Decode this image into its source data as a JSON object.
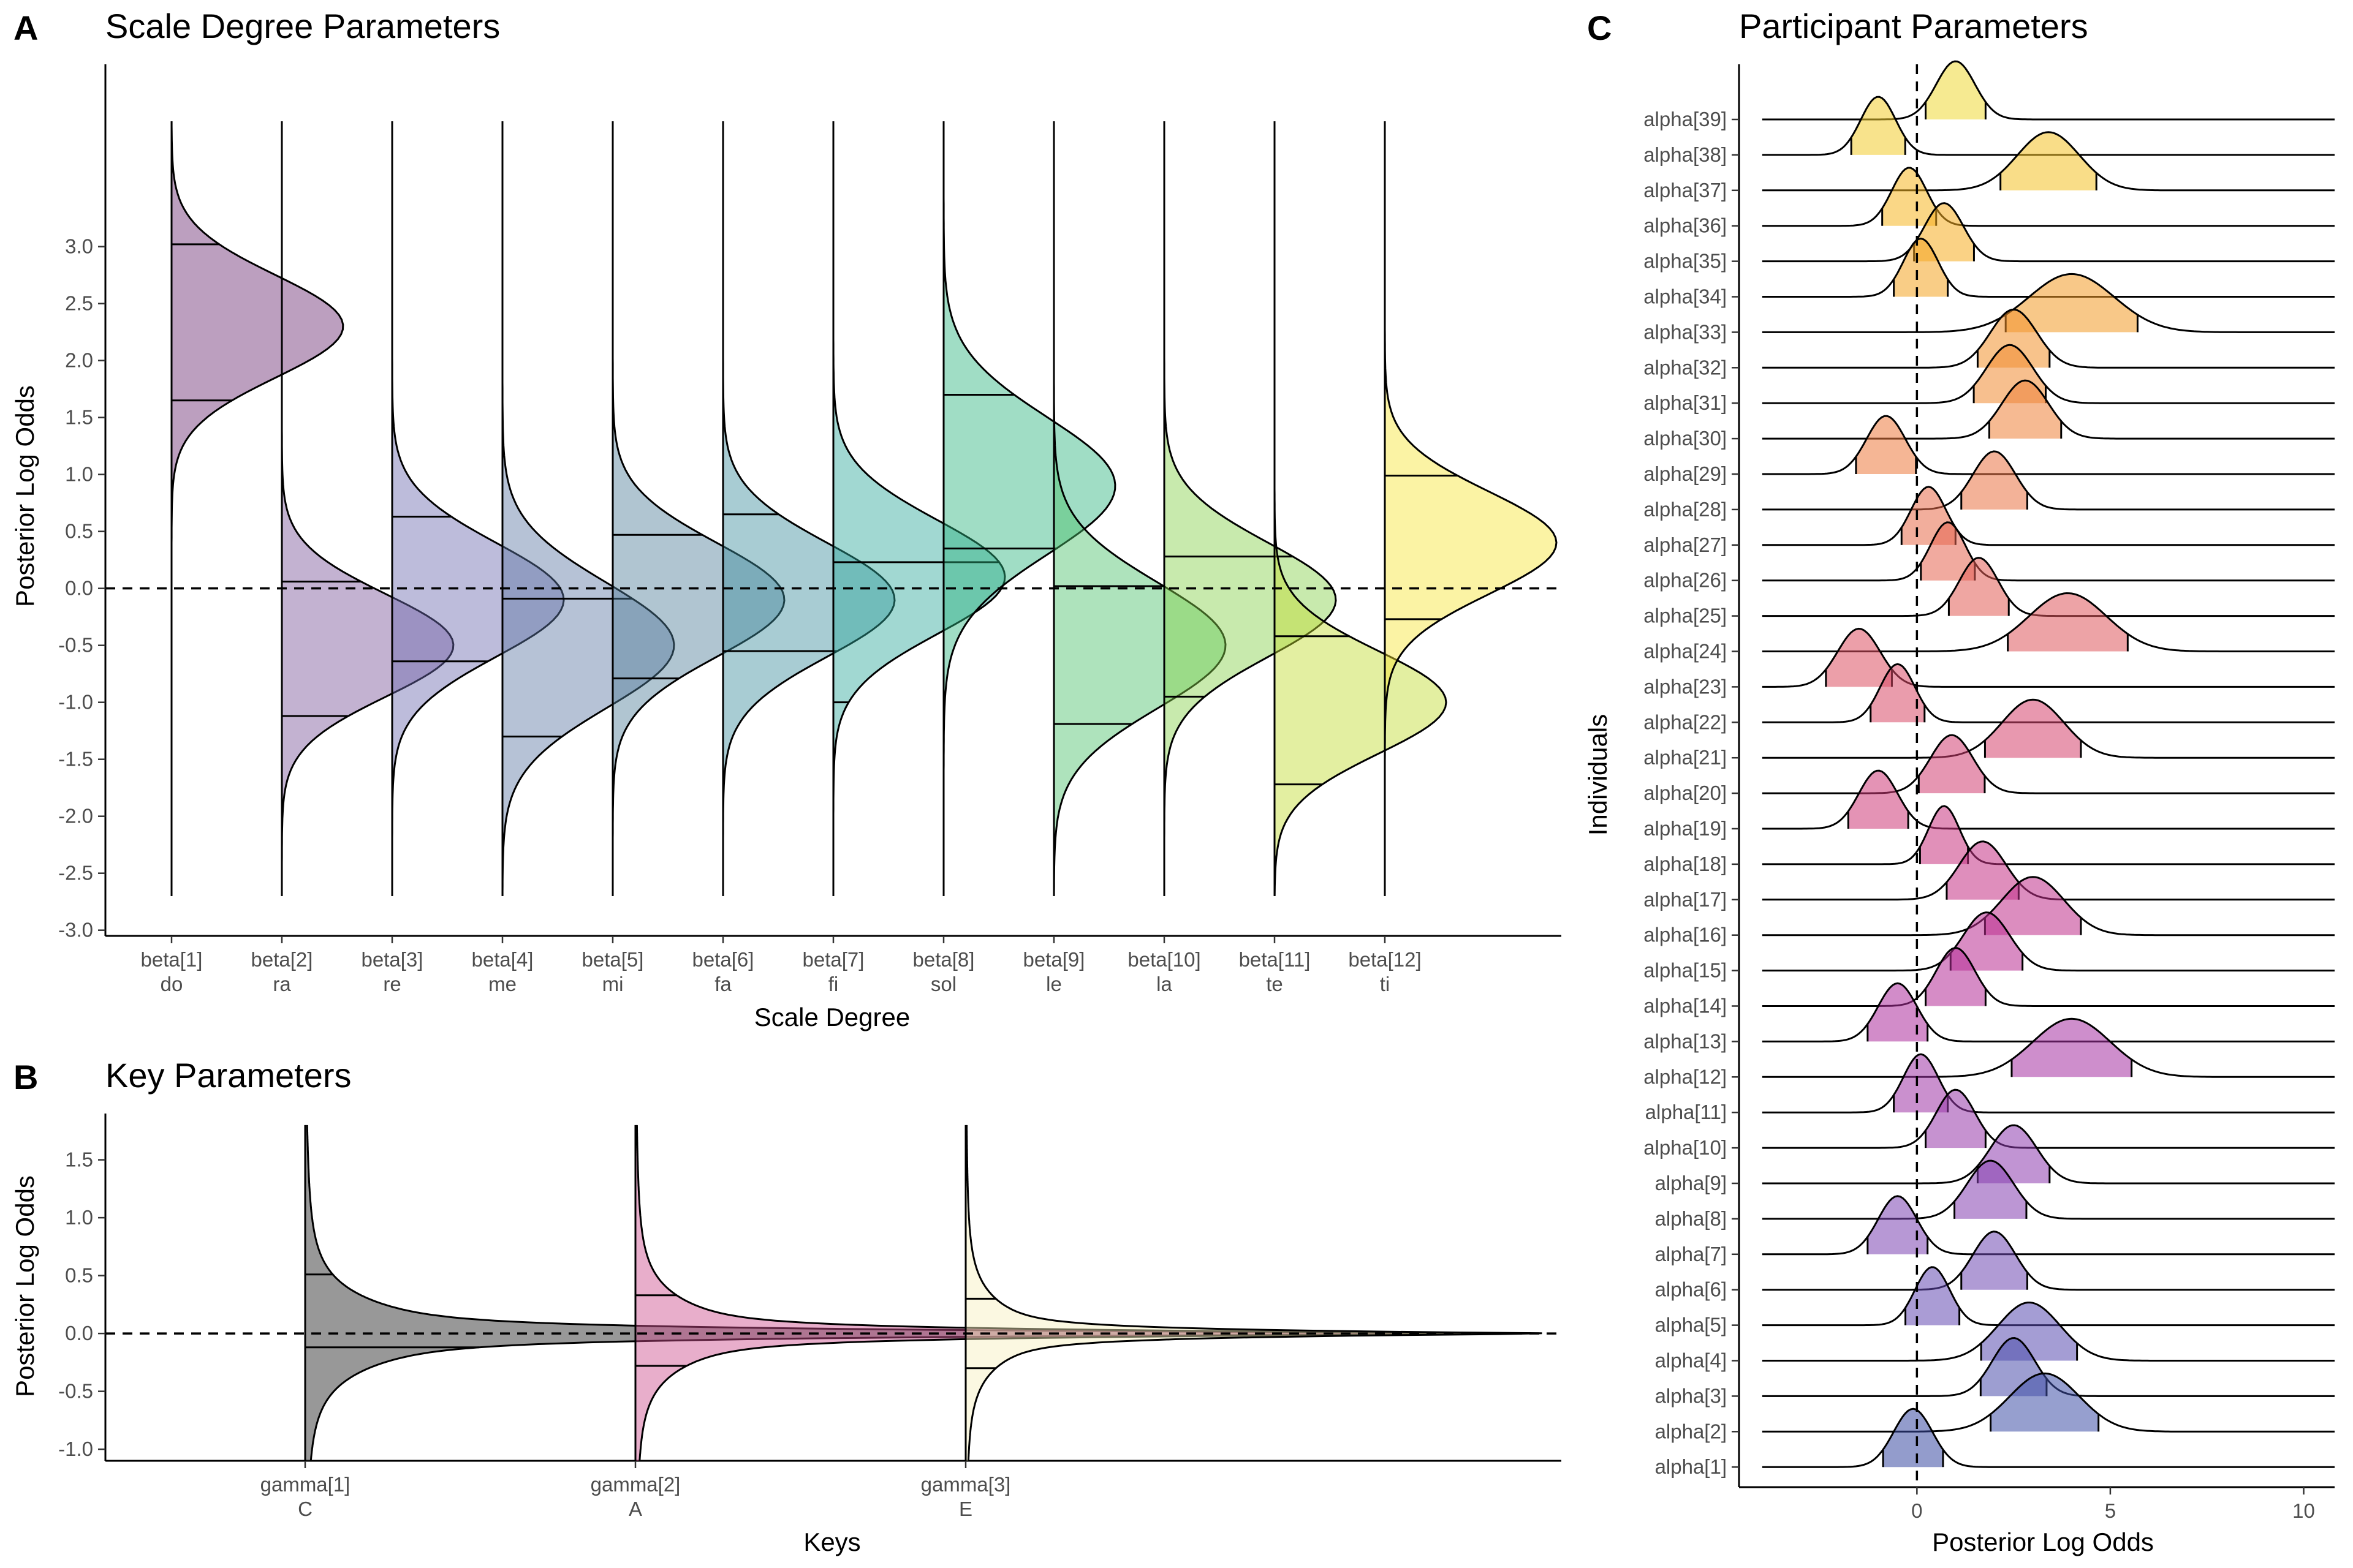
{
  "chart_data": [
    {
      "panel_letter": "A",
      "type": "violin",
      "title": "Scale Degree Parameters",
      "xlabel": "Scale Degree",
      "ylabel": "Posterior Log Odds",
      "ylim": [
        -3.05,
        4.6
      ],
      "yticks": [
        "3.0",
        "2.5",
        "2.0",
        "1.5",
        "1.0",
        "0.5",
        "0.0",
        "-0.5",
        "-1.0",
        "-1.5",
        "-2.0",
        "-2.5",
        "-3.0"
      ],
      "reference_line": 0,
      "categories": [
        {
          "param": "beta[1]",
          "label": "do",
          "mean": 2.3,
          "sd": 0.45,
          "q_low": 1.65,
          "q_high": 3.02,
          "color": "#6b2a72",
          "y_range": [
            -2.7,
            4.1
          ]
        },
        {
          "param": "beta[2]",
          "label": "ra",
          "mean": -0.5,
          "sd": 0.45,
          "q_low": -1.12,
          "q_high": 0.06,
          "color": "#7a5599",
          "y_range": [
            -2.7,
            4.1
          ]
        },
        {
          "param": "beta[3]",
          "label": "re",
          "mean": -0.1,
          "sd": 0.5,
          "q_low": -0.64,
          "q_high": 0.63,
          "color": "#6c6ab0",
          "y_range": [
            -2.7,
            4.1
          ]
        },
        {
          "param": "beta[4]",
          "label": "me",
          "mean": -0.5,
          "sd": 0.55,
          "q_low": -1.3,
          "q_high": -0.09,
          "color": "#5d77a3",
          "y_range": [
            -2.7,
            4.1
          ]
        },
        {
          "param": "beta[5]",
          "label": "mi",
          "mean": -0.1,
          "sd": 0.5,
          "q_low": -0.79,
          "q_high": 0.47,
          "color": "#4f7f9a",
          "y_range": [
            -2.7,
            4.1
          ]
        },
        {
          "param": "beta[6]",
          "label": "fa",
          "mean": -0.1,
          "sd": 0.5,
          "q_low": -0.55,
          "q_high": 0.65,
          "color": "#3e8e9e",
          "y_range": [
            -2.7,
            4.1
          ]
        },
        {
          "param": "beta[7]",
          "label": "fi",
          "mean": 0.1,
          "sd": 0.5,
          "q_low": -1.0,
          "q_high": 0.23,
          "color": "#2ea89c",
          "y_range": [
            -2.7,
            4.1
          ]
        },
        {
          "param": "beta[8]",
          "label": "sol",
          "mean": 0.9,
          "sd": 0.6,
          "q_low": 0.35,
          "q_high": 1.7,
          "color": "#2cb37f",
          "y_range": [
            -2.7,
            4.1
          ]
        },
        {
          "param": "beta[9]",
          "label": "le",
          "mean": -0.5,
          "sd": 0.55,
          "q_low": -1.19,
          "q_high": 0.02,
          "color": "#4cc26a",
          "y_range": [
            -2.7,
            4.1
          ]
        },
        {
          "param": "beta[10]",
          "label": "la",
          "mean": -0.1,
          "sd": 0.5,
          "q_low": -0.95,
          "q_high": 0.28,
          "color": "#84d149",
          "y_range": [
            -2.7,
            4.1
          ]
        },
        {
          "param": "beta[11]",
          "label": "te",
          "mean": -1.0,
          "sd": 0.45,
          "q_low": -1.72,
          "q_high": -0.42,
          "color": "#c1dc2e",
          "y_range": [
            -2.7,
            4.1
          ]
        },
        {
          "param": "beta[12]",
          "label": "ti",
          "mean": 0.4,
          "sd": 0.45,
          "q_low": -0.27,
          "q_high": 0.99,
          "color": "#f6e435",
          "y_range": [
            -2.7,
            4.1
          ]
        }
      ]
    },
    {
      "panel_letter": "B",
      "type": "violin",
      "title": "Key Parameters",
      "xlabel": "Keys",
      "ylabel": "Posterior Log Odds",
      "ylim": [
        -1.1,
        1.9
      ],
      "yticks": [
        "1.5",
        "1.0",
        "0.5",
        "0.0",
        "-0.5",
        "-1.0"
      ],
      "reference_line": 0,
      "categories": [
        {
          "param": "gamma[1]",
          "label": "C",
          "center": 0,
          "q_low": -0.12,
          "q_high": 0.51,
          "color": "#1a1a1a",
          "y_range": [
            -1.1,
            1.8
          ]
        },
        {
          "param": "gamma[2]",
          "label": "A",
          "center": 0,
          "q_low": -0.28,
          "q_high": 0.33,
          "color": "#cc4c8c",
          "y_range": [
            -1.1,
            1.8
          ]
        },
        {
          "param": "gamma[3]",
          "label": "E",
          "center": 0,
          "q_low": -0.3,
          "q_high": 0.3,
          "color": "#f7f0bc",
          "y_range": [
            -1.1,
            1.8
          ]
        }
      ]
    },
    {
      "panel_letter": "C",
      "type": "ridgeline",
      "title": "Participant Parameters",
      "xlabel": "Posterior Log Odds",
      "ylabel": "Individuals",
      "xlim": [
        -4.6,
        10.8
      ],
      "xticks": [
        "0",
        "5",
        "10"
      ],
      "reference_line": 0,
      "series": [
        {
          "name": "alpha[1]",
          "mean": -0.1,
          "sd": 0.5,
          "color": "#3b4aa2"
        },
        {
          "name": "alpha[2]",
          "mean": 3.3,
          "sd": 0.9,
          "color": "#4050a8"
        },
        {
          "name": "alpha[3]",
          "mean": 2.5,
          "sd": 0.55,
          "color": "#4d4fab"
        },
        {
          "name": "alpha[4]",
          "mean": 2.9,
          "sd": 0.8,
          "color": "#5a4db0"
        },
        {
          "name": "alpha[5]",
          "mean": 0.4,
          "sd": 0.45,
          "color": "#654bb2"
        },
        {
          "name": "alpha[6]",
          "mean": 2.0,
          "sd": 0.55,
          "color": "#7048b2"
        },
        {
          "name": "alpha[7]",
          "mean": -0.5,
          "sd": 0.5,
          "color": "#7b44b2"
        },
        {
          "name": "alpha[8]",
          "mean": 1.9,
          "sd": 0.6,
          "color": "#8540b1"
        },
        {
          "name": "alpha[9]",
          "mean": 2.5,
          "sd": 0.6,
          "color": "#8e3cae"
        },
        {
          "name": "alpha[10]",
          "mean": 1.0,
          "sd": 0.5,
          "color": "#9738aa"
        },
        {
          "name": "alpha[11]",
          "mean": 0.1,
          "sd": 0.45,
          "color": "#9f34a6"
        },
        {
          "name": "alpha[12]",
          "mean": 4.0,
          "sd": 1.0,
          "color": "#a631a2"
        },
        {
          "name": "alpha[13]",
          "mean": -0.5,
          "sd": 0.5,
          "color": "#ad2e9c"
        },
        {
          "name": "alpha[14]",
          "mean": 1.0,
          "sd": 0.5,
          "color": "#b42d97"
        },
        {
          "name": "alpha[15]",
          "mean": 1.8,
          "sd": 0.6,
          "color": "#ba2d91"
        },
        {
          "name": "alpha[16]",
          "mean": 3.0,
          "sd": 0.8,
          "color": "#bf2f8b"
        },
        {
          "name": "alpha[17]",
          "mean": 1.7,
          "sd": 0.6,
          "color": "#c43285"
        },
        {
          "name": "alpha[18]",
          "mean": 0.7,
          "sd": 0.4,
          "color": "#c9357f"
        },
        {
          "name": "alpha[19]",
          "mean": -1.0,
          "sd": 0.5,
          "color": "#cd3a79"
        },
        {
          "name": "alpha[20]",
          "mean": 0.9,
          "sd": 0.55,
          "color": "#d13f73"
        },
        {
          "name": "alpha[21]",
          "mean": 3.0,
          "sd": 0.8,
          "color": "#d5446d"
        },
        {
          "name": "alpha[22]",
          "mean": -0.5,
          "sd": 0.45,
          "color": "#d84a67"
        },
        {
          "name": "alpha[23]",
          "mean": -1.5,
          "sd": 0.55,
          "color": "#dc5062"
        },
        {
          "name": "alpha[24]",
          "mean": 3.9,
          "sd": 1.0,
          "color": "#df575c"
        },
        {
          "name": "alpha[25]",
          "mean": 1.6,
          "sd": 0.5,
          "color": "#e25d56"
        },
        {
          "name": "alpha[26]",
          "mean": 0.8,
          "sd": 0.45,
          "color": "#e56450"
        },
        {
          "name": "alpha[27]",
          "mean": 0.3,
          "sd": 0.45,
          "color": "#e76b4a"
        },
        {
          "name": "alpha[28]",
          "mean": 2.0,
          "sd": 0.55,
          "color": "#ea7244"
        },
        {
          "name": "alpha[29]",
          "mean": -0.8,
          "sd": 0.5,
          "color": "#ec7a3e"
        },
        {
          "name": "alpha[30]",
          "mean": 2.8,
          "sd": 0.6,
          "color": "#ee8238"
        },
        {
          "name": "alpha[31]",
          "mean": 2.4,
          "sd": 0.6,
          "color": "#f08a32"
        },
        {
          "name": "alpha[32]",
          "mean": 2.5,
          "sd": 0.6,
          "color": "#f2922c"
        },
        {
          "name": "alpha[33]",
          "mean": 4.0,
          "sd": 1.1,
          "color": "#f39b27"
        },
        {
          "name": "alpha[34]",
          "mean": 0.1,
          "sd": 0.45,
          "color": "#f4a423"
        },
        {
          "name": "alpha[35]",
          "mean": 0.7,
          "sd": 0.5,
          "color": "#f5ad21"
        },
        {
          "name": "alpha[36]",
          "mean": -0.2,
          "sd": 0.45,
          "color": "#f5b722"
        },
        {
          "name": "alpha[37]",
          "mean": 3.4,
          "sd": 0.8,
          "color": "#f4c126"
        },
        {
          "name": "alpha[38]",
          "mean": -1.0,
          "sd": 0.45,
          "color": "#f2cc2d"
        },
        {
          "name": "alpha[39]",
          "mean": 1.0,
          "sd": 0.5,
          "color": "#eed936"
        }
      ]
    }
  ]
}
